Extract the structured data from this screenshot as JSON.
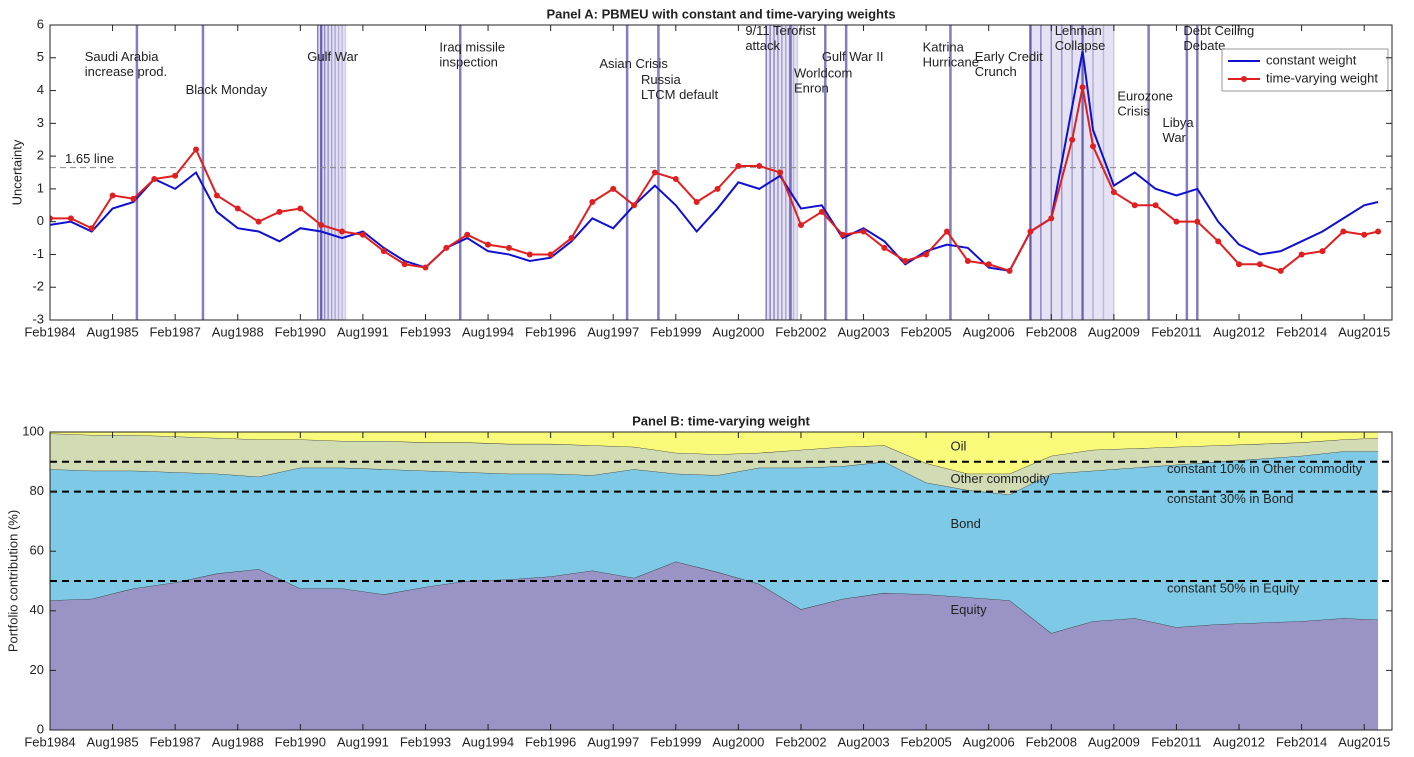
{
  "chart_data": [
    {
      "type": "line",
      "title": "Panel A: PBMEU with constant and time-varying weights",
      "ylabel": "Uncertainty",
      "x": [
        "1984-02",
        "1984-08",
        "1985-02",
        "1985-08",
        "1986-02",
        "1986-08",
        "1987-02",
        "1987-08",
        "1988-02",
        "1988-08",
        "1989-02",
        "1989-08",
        "1990-02",
        "1990-08",
        "1991-02",
        "1991-08",
        "1992-02",
        "1992-08",
        "1993-02",
        "1993-08",
        "1994-02",
        "1994-08",
        "1995-02",
        "1995-08",
        "1996-02",
        "1996-08",
        "1997-02",
        "1997-08",
        "1998-02",
        "1998-08",
        "1999-02",
        "1999-08",
        "2000-02",
        "2000-08",
        "2001-02",
        "2001-08",
        "2002-02",
        "2002-08",
        "2003-02",
        "2003-08",
        "2004-02",
        "2004-08",
        "2005-02",
        "2005-08",
        "2006-02",
        "2006-08",
        "2007-02",
        "2007-08",
        "2008-02",
        "2008-08",
        "2008-11",
        "2009-02",
        "2009-08",
        "2010-02",
        "2010-08",
        "2011-02",
        "2011-08",
        "2012-02",
        "2012-08",
        "2013-02",
        "2013-08",
        "2014-02",
        "2014-08",
        "2015-02",
        "2015-08",
        "2015-12"
      ],
      "series": [
        {
          "name": "constant weight",
          "color": "#1010d0",
          "marker": false,
          "values": [
            -0.1,
            0.0,
            -0.3,
            0.4,
            0.6,
            1.3,
            1.0,
            1.5,
            0.3,
            -0.2,
            -0.3,
            -0.6,
            -0.2,
            -0.3,
            -0.5,
            -0.3,
            -0.8,
            -1.2,
            -1.4,
            -0.8,
            -0.5,
            -0.9,
            -1.0,
            -1.2,
            -1.1,
            -0.6,
            0.1,
            -0.2,
            0.5,
            1.1,
            0.5,
            -0.3,
            0.4,
            1.2,
            1.0,
            1.4,
            0.4,
            0.5,
            -0.5,
            -0.2,
            -0.6,
            -1.3,
            -0.9,
            -0.7,
            -0.8,
            -1.4,
            -1.5,
            -0.3,
            0.1,
            3.5,
            5.2,
            2.8,
            1.1,
            1.5,
            1.0,
            0.8,
            1.0,
            0.0,
            -0.7,
            -1.0,
            -0.9,
            -0.6,
            -0.3,
            0.1,
            0.5,
            0.6
          ]
        },
        {
          "name": "time-varying weight",
          "color": "#e02020",
          "marker": true,
          "values": [
            0.1,
            0.1,
            -0.2,
            0.8,
            0.7,
            1.3,
            1.4,
            2.2,
            0.8,
            0.4,
            0.0,
            0.3,
            0.4,
            -0.1,
            -0.3,
            -0.4,
            -0.9,
            -1.3,
            -1.4,
            -0.8,
            -0.4,
            -0.7,
            -0.8,
            -1.0,
            -1.0,
            -0.5,
            0.6,
            1.0,
            0.5,
            1.5,
            1.3,
            0.6,
            1.0,
            1.7,
            1.7,
            1.5,
            -0.1,
            0.3,
            -0.4,
            -0.3,
            -0.8,
            -1.2,
            -1.0,
            -0.3,
            -1.2,
            -1.3,
            -1.5,
            -0.3,
            0.1,
            2.5,
            4.1,
            2.3,
            0.9,
            0.5,
            0.5,
            0.0,
            0.0,
            -0.6,
            -1.3,
            -1.3,
            -1.5,
            -1.0,
            -0.9,
            -0.3,
            -0.4,
            -0.3
          ]
        }
      ],
      "xlim": [
        "1984-02",
        "2016-04"
      ],
      "xticks": [
        {
          "value": "1984-02",
          "label": "Feb1984"
        },
        {
          "value": "1985-08",
          "label": "Aug1985"
        },
        {
          "value": "1987-02",
          "label": "Feb1987"
        },
        {
          "value": "1988-08",
          "label": "Aug1988"
        },
        {
          "value": "1990-02",
          "label": "Feb1990"
        },
        {
          "value": "1991-08",
          "label": "Aug1991"
        },
        {
          "value": "1993-02",
          "label": "Feb1993"
        },
        {
          "value": "1994-08",
          "label": "Aug1994"
        },
        {
          "value": "1996-02",
          "label": "Feb1996"
        },
        {
          "value": "1997-08",
          "label": "Aug1997"
        },
        {
          "value": "1999-02",
          "label": "Feb1999"
        },
        {
          "value": "2000-08",
          "label": "Aug2000"
        },
        {
          "value": "2002-02",
          "label": "Feb2002"
        },
        {
          "value": "2003-08",
          "label": "Aug2003"
        },
        {
          "value": "2005-02",
          "label": "Feb2005"
        },
        {
          "value": "2006-08",
          "label": "Aug2006"
        },
        {
          "value": "2008-02",
          "label": "Feb2008"
        },
        {
          "value": "2009-08",
          "label": "Aug2009"
        },
        {
          "value": "2011-02",
          "label": "Feb2011"
        },
        {
          "value": "2012-08",
          "label": "Aug2012"
        },
        {
          "value": "2014-02",
          "label": "Feb2014"
        },
        {
          "value": "2015-08",
          "label": "Aug2015"
        }
      ],
      "ylim": [
        -3,
        6
      ],
      "yticks": [
        -3,
        -2,
        -1,
        0,
        1,
        2,
        3,
        4,
        5,
        6
      ],
      "legend": "northeast",
      "threshold": {
        "value": 1.65,
        "label": "1.65 line"
      },
      "spans": [
        {
          "start": "1990-07",
          "end": "1991-03"
        },
        {
          "start": "2001-04",
          "end": "2002-01"
        },
        {
          "start": "2007-08",
          "end": "2009-08"
        }
      ],
      "events": [
        {
          "date": "1986-03",
          "lines": [
            "Saudi Arabia",
            "increase prod."
          ],
          "text_x": "1984-12",
          "text_y": 5.0
        },
        {
          "date": "1987-10",
          "lines": [
            "Black Monday"
          ],
          "text_x": "1987-05",
          "text_y": 4.0
        },
        {
          "date": "1990-08",
          "lines": [
            "Gulf War"
          ],
          "text_x": "1990-04",
          "text_y": 5.0
        },
        {
          "date": "1993-12",
          "lines": [
            "Iraq missile",
            "inspection"
          ],
          "text_x": "1993-06",
          "text_y": 5.3
        },
        {
          "date": "1997-12",
          "lines": [
            "Asian Crisis"
          ],
          "text_x": "1997-04",
          "text_y": 4.8
        },
        {
          "date": "1998-09",
          "lines": [
            "Russia",
            "LTCM default"
          ],
          "text_x": "1998-04",
          "text_y": 4.3
        },
        {
          "date": "2001-11",
          "lines": [
            "9/11 Terorist",
            "attack"
          ],
          "text_x": "2000-10",
          "text_y": 5.8
        },
        {
          "date": "2002-09",
          "lines": [
            "Worldcom",
            "Enron"
          ],
          "text_x": "2001-12",
          "text_y": 4.5
        },
        {
          "date": "2003-03",
          "lines": [
            "Gulf War II"
          ],
          "text_x": "2002-08",
          "text_y": 5.0
        },
        {
          "date": "2005-09",
          "lines": [
            "Katrina",
            "Hurricane"
          ],
          "text_x": "2005-01",
          "text_y": 5.3
        },
        {
          "date": "2008-11",
          "lines": [
            "Lehman",
            "Collapse"
          ],
          "text_x": "2008-03",
          "text_y": 5.8
        },
        {
          "date": "2010-06",
          "lines": [
            "Eurozone",
            "Crisis"
          ],
          "text_x": "2009-09",
          "text_y": 3.8
        },
        {
          "date": "2011-05",
          "lines": [
            "Libya",
            "War"
          ],
          "text_x": "2010-10",
          "text_y": 3.0
        },
        {
          "date": "2011-08",
          "lines": [
            "Debt Ceiling",
            "Debate"
          ],
          "text_x": "2011-04",
          "text_y": 5.8
        },
        {
          "date": "2007-08",
          "lines": [
            "Early Credit",
            "Crunch"
          ],
          "text_x": "2006-04",
          "text_y": 5.0
        }
      ]
    },
    {
      "type": "area",
      "title": "Panel B: time-varying weight",
      "ylabel": "Portfolio contribution (%)",
      "x": [
        "1984-02",
        "1985-02",
        "1986-02",
        "1987-02",
        "1988-02",
        "1989-02",
        "1990-02",
        "1991-02",
        "1992-02",
        "1993-02",
        "1994-02",
        "1995-02",
        "1996-02",
        "1997-02",
        "1998-02",
        "1999-02",
        "2000-02",
        "2001-02",
        "2002-02",
        "2003-02",
        "2004-02",
        "2005-02",
        "2006-02",
        "2007-02",
        "2008-02",
        "2009-02",
        "2010-02",
        "2011-02",
        "2012-02",
        "2013-02",
        "2014-02",
        "2015-02",
        "2015-12"
      ],
      "series": [
        {
          "name": "Equity",
          "color": "#9a94c6",
          "values": [
            43.5,
            44,
            47.5,
            49.5,
            52.5,
            54,
            47.5,
            47.5,
            45.5,
            48,
            50,
            50.5,
            51.5,
            53.5,
            51,
            56.5,
            53,
            49,
            40.5,
            44,
            46,
            45.5,
            44.5,
            43.5,
            32.5,
            36.5,
            37.5,
            34.5,
            35.5,
            36,
            36.5,
            37.5,
            37
          ]
        },
        {
          "name": "Bond",
          "color": "#7ecae6",
          "values": [
            44,
            43,
            39.5,
            37,
            33.5,
            31,
            40.5,
            40.5,
            42,
            39,
            36.5,
            35.5,
            34.5,
            32,
            36.5,
            29.5,
            32.5,
            39,
            47.5,
            44.5,
            44,
            37.5,
            36,
            35.5,
            53.5,
            50.5,
            50.5,
            54.5,
            54.5,
            55,
            55.5,
            56,
            56.5
          ]
        },
        {
          "name": "Other commodity",
          "color": "#d1dcb4",
          "values": [
            12,
            12,
            12,
            12,
            12,
            12.5,
            9.5,
            9,
            9.5,
            9.5,
            10,
            10,
            10,
            10,
            7.5,
            7,
            7,
            5,
            6,
            6.5,
            5.5,
            6.5,
            5.5,
            7,
            6,
            7,
            6.5,
            6,
            5.5,
            5,
            4.5,
            4,
            4.5
          ]
        },
        {
          "name": "Oil",
          "color": "#fafa7a",
          "values": [
            0.5,
            1,
            1,
            1.5,
            2,
            2.5,
            2.5,
            3,
            3,
            3.5,
            3.5,
            4,
            4,
            4.5,
            5,
            7,
            7.5,
            7,
            6,
            5,
            4.5,
            10.5,
            14,
            14,
            8,
            6,
            5.5,
            5,
            4.5,
            4,
            3.5,
            2.5,
            2
          ]
        }
      ],
      "xlim": [
        "1984-02",
        "2016-04"
      ],
      "xticks": [
        {
          "value": "1984-02",
          "label": "Feb1984"
        },
        {
          "value": "1985-08",
          "label": "Aug1985"
        },
        {
          "value": "1987-02",
          "label": "Feb1987"
        },
        {
          "value": "1988-08",
          "label": "Aug1988"
        },
        {
          "value": "1990-02",
          "label": "Feb1990"
        },
        {
          "value": "1991-08",
          "label": "Aug1991"
        },
        {
          "value": "1993-02",
          "label": "Feb1993"
        },
        {
          "value": "1994-08",
          "label": "Aug1994"
        },
        {
          "value": "1996-02",
          "label": "Feb1996"
        },
        {
          "value": "1997-08",
          "label": "Aug1997"
        },
        {
          "value": "1999-02",
          "label": "Feb1999"
        },
        {
          "value": "2000-08",
          "label": "Aug2000"
        },
        {
          "value": "2002-02",
          "label": "Feb2002"
        },
        {
          "value": "2003-08",
          "label": "Aug2003"
        },
        {
          "value": "2005-02",
          "label": "Feb2005"
        },
        {
          "value": "2006-08",
          "label": "Aug2006"
        },
        {
          "value": "2008-02",
          "label": "Feb2008"
        },
        {
          "value": "2009-08",
          "label": "Aug2009"
        },
        {
          "value": "2011-02",
          "label": "Feb2011"
        },
        {
          "value": "2012-08",
          "label": "Aug2012"
        },
        {
          "value": "2014-02",
          "label": "Feb2014"
        },
        {
          "value": "2015-08",
          "label": "Aug2015"
        }
      ],
      "ylim": [
        0,
        100
      ],
      "yticks": [
        0,
        20,
        40,
        60,
        80,
        100
      ],
      "reference_lines": [
        {
          "value": 90,
          "label": "constant 10% in Other commodity"
        },
        {
          "value": 80,
          "label": "constant 30% in Bond"
        },
        {
          "value": 50,
          "label": "constant 50% in Equity"
        }
      ],
      "area_labels": [
        {
          "series": 3,
          "text_x": "2005-09",
          "text_y": 95
        },
        {
          "series": 2,
          "text_x": "2005-09",
          "text_y": 84
        },
        {
          "series": 1,
          "text_x": "2005-09",
          "text_y": 69
        },
        {
          "series": 0,
          "text_x": "2005-09",
          "text_y": 40
        }
      ]
    }
  ]
}
